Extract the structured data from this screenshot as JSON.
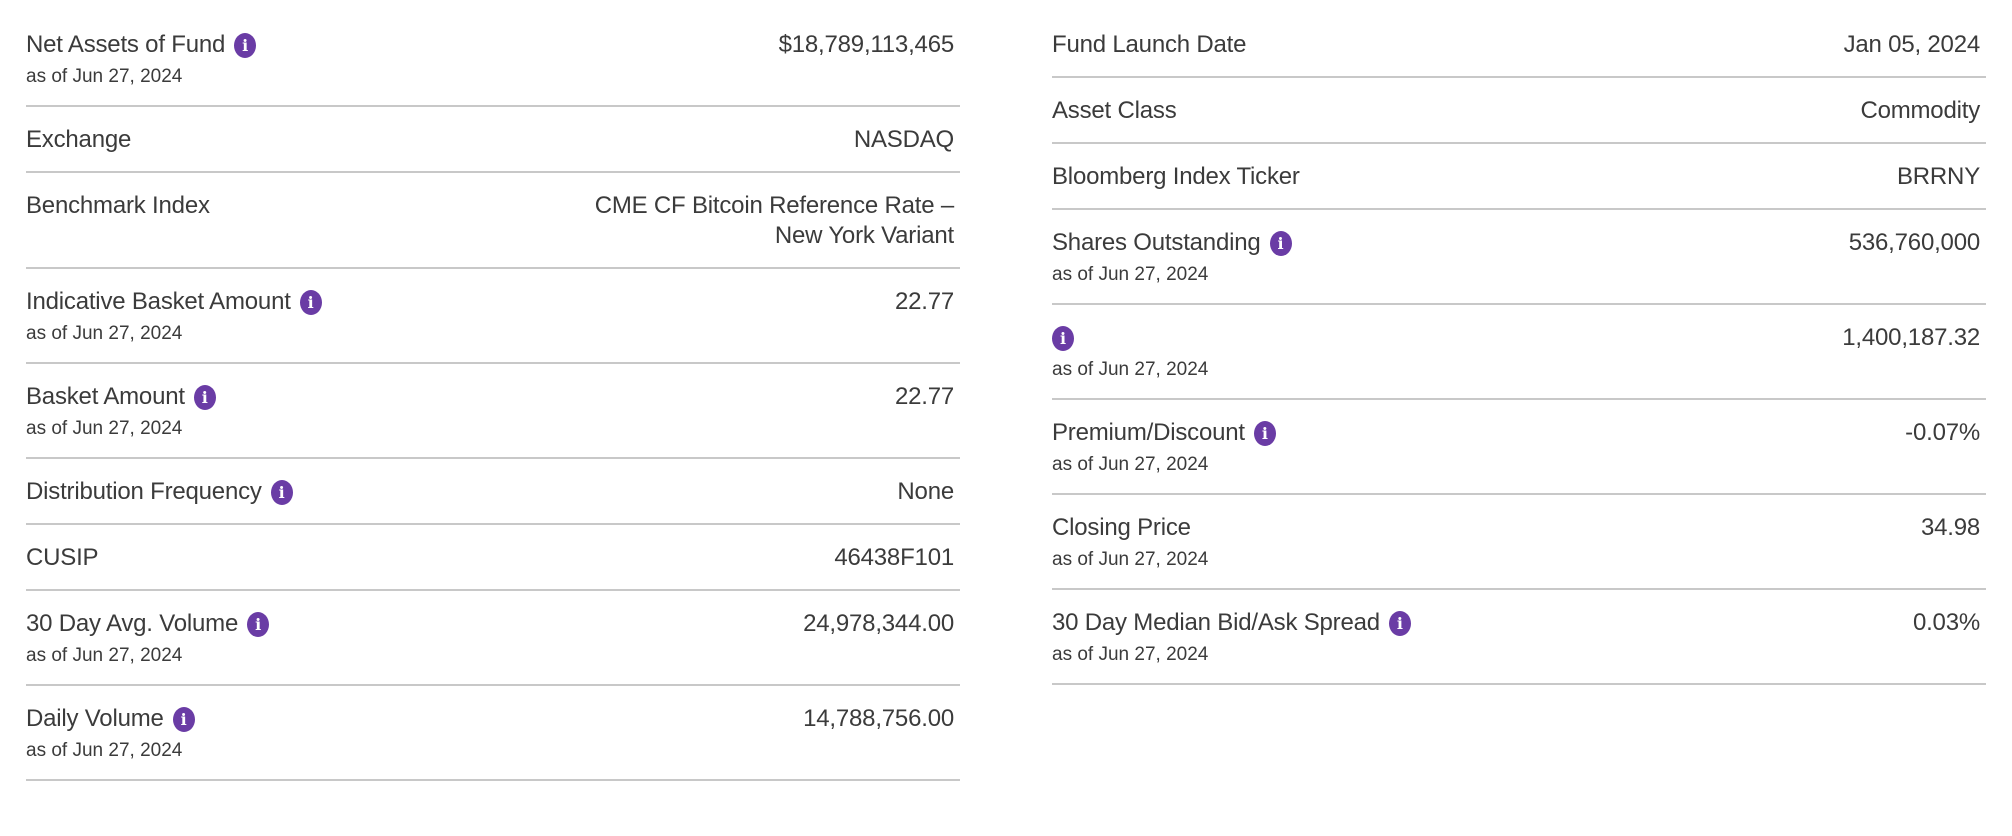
{
  "colors": {
    "accent_purple": "#6A3CA5",
    "text": "#3B3B3B",
    "divider": "#C8C8C8"
  },
  "info_icon": {
    "glyph": "i"
  },
  "columns": [
    {
      "name": "left",
      "rows": [
        {
          "label": "Net Assets of Fund",
          "has_info": true,
          "as_of": "as of Jun 27, 2024",
          "value": "$18,789,113,465"
        },
        {
          "label": "Exchange",
          "has_info": false,
          "value": "NASDAQ"
        },
        {
          "label": "Benchmark Index",
          "has_info": false,
          "value": "CME CF Bitcoin Reference Rate –\nNew York Variant"
        },
        {
          "label": "Indicative Basket Amount",
          "has_info": true,
          "as_of": "as of Jun 27, 2024",
          "value": "22.77"
        },
        {
          "label": "Basket Amount",
          "has_info": true,
          "as_of": "as of Jun 27, 2024",
          "value": "22.77"
        },
        {
          "label": "Distribution Frequency",
          "has_info": true,
          "value": "None"
        },
        {
          "label": "CUSIP",
          "has_info": false,
          "value": "46438F101"
        },
        {
          "label": "30 Day Avg. Volume",
          "has_info": true,
          "as_of": "as of Jun 27, 2024",
          "value": "24,978,344.00"
        },
        {
          "label": "Daily Volume",
          "has_info": true,
          "as_of": "as of Jun 27, 2024",
          "value": "14,788,756.00"
        }
      ]
    },
    {
      "name": "right",
      "rows": [
        {
          "label": "Fund Launch Date",
          "has_info": false,
          "value": "Jan 05, 2024"
        },
        {
          "label": "Asset Class",
          "has_info": false,
          "value": "Commodity"
        },
        {
          "label": "Bloomberg Index Ticker",
          "has_info": false,
          "value": "BRRNY"
        },
        {
          "label": "Shares Outstanding",
          "has_info": true,
          "as_of": "as of Jun 27, 2024",
          "value": "536,760,000"
        },
        {
          "label": "",
          "has_info": true,
          "as_of": "as of Jun 27, 2024",
          "value": "1,400,187.32"
        },
        {
          "label": "Premium/Discount",
          "has_info": true,
          "as_of": "as of Jun 27, 2024",
          "value": "-0.07%"
        },
        {
          "label": "Closing Price",
          "has_info": false,
          "as_of": "as of Jun 27, 2024",
          "value": "34.98"
        },
        {
          "label": "30 Day Median Bid/Ask Spread",
          "has_info": true,
          "as_of": "as of Jun 27, 2024",
          "value": "0.03%"
        }
      ]
    }
  ]
}
